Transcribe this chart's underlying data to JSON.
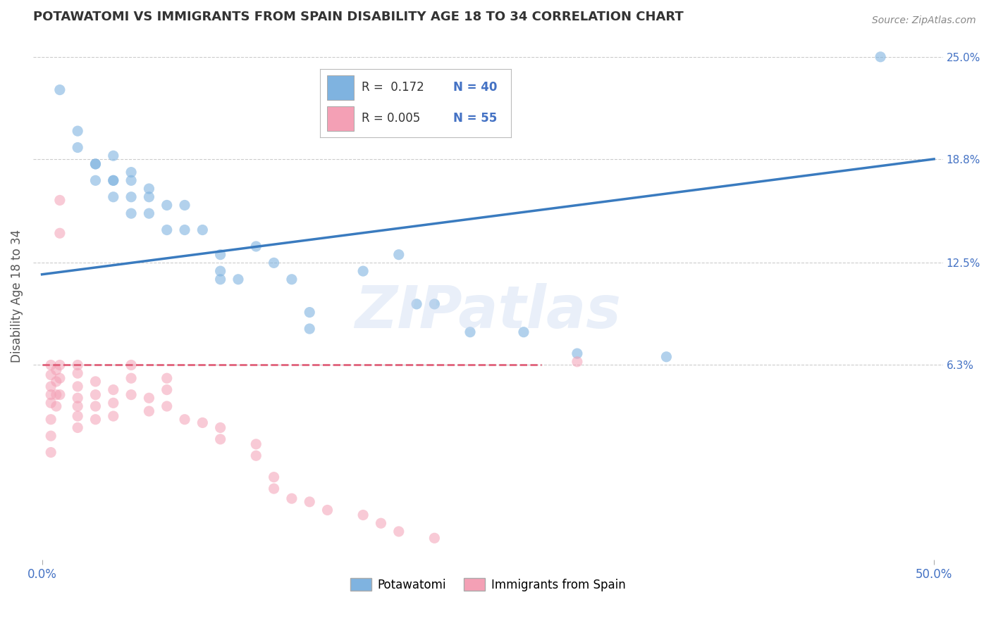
{
  "title": "POTAWATOMI VS IMMIGRANTS FROM SPAIN DISABILITY AGE 18 TO 34 CORRELATION CHART",
  "source": "Source: ZipAtlas.com",
  "ylabel": "Disability Age 18 to 34",
  "xlim": [
    -0.005,
    0.505
  ],
  "ylim": [
    -0.055,
    0.265
  ],
  "xticklabels": [
    "0.0%",
    "50.0%"
  ],
  "ytick_right_vals": [
    0.063,
    0.125,
    0.188,
    0.25
  ],
  "ytick_right_labels": [
    "6.3%",
    "12.5%",
    "18.8%",
    "25.0%"
  ],
  "watermark": "ZIPatlas",
  "legend_blue_r": "R =  0.172",
  "legend_blue_n": "N = 40",
  "legend_pink_r": "R = 0.005",
  "legend_pink_n": "N = 55",
  "legend_blue_label": "Potawatomi",
  "legend_pink_label": "Immigrants from Spain",
  "blue_color": "#7fb3e0",
  "pink_color": "#f4a0b5",
  "blue_line_color": "#3a7bbf",
  "pink_line_color": "#e0607a",
  "background_color": "#ffffff",
  "grid_color": "#cccccc",
  "blue_scatter_x": [
    0.01,
    0.02,
    0.02,
    0.03,
    0.03,
    0.03,
    0.04,
    0.04,
    0.04,
    0.04,
    0.05,
    0.05,
    0.05,
    0.05,
    0.06,
    0.06,
    0.06,
    0.07,
    0.07,
    0.08,
    0.08,
    0.09,
    0.1,
    0.1,
    0.1,
    0.11,
    0.12,
    0.13,
    0.14,
    0.15,
    0.15,
    0.18,
    0.2,
    0.21,
    0.22,
    0.24,
    0.27,
    0.3,
    0.35,
    0.47
  ],
  "blue_scatter_y": [
    0.23,
    0.205,
    0.195,
    0.185,
    0.185,
    0.175,
    0.19,
    0.175,
    0.175,
    0.165,
    0.18,
    0.175,
    0.165,
    0.155,
    0.17,
    0.165,
    0.155,
    0.16,
    0.145,
    0.16,
    0.145,
    0.145,
    0.13,
    0.12,
    0.115,
    0.115,
    0.135,
    0.125,
    0.115,
    0.095,
    0.085,
    0.12,
    0.13,
    0.1,
    0.1,
    0.083,
    0.083,
    0.07,
    0.068,
    0.25
  ],
  "pink_scatter_x": [
    0.005,
    0.005,
    0.005,
    0.005,
    0.005,
    0.005,
    0.005,
    0.005,
    0.008,
    0.008,
    0.008,
    0.008,
    0.01,
    0.01,
    0.01,
    0.01,
    0.01,
    0.02,
    0.02,
    0.02,
    0.02,
    0.02,
    0.02,
    0.02,
    0.03,
    0.03,
    0.03,
    0.03,
    0.04,
    0.04,
    0.04,
    0.05,
    0.05,
    0.05,
    0.06,
    0.06,
    0.07,
    0.07,
    0.07,
    0.08,
    0.09,
    0.1,
    0.1,
    0.12,
    0.12,
    0.13,
    0.13,
    0.14,
    0.15,
    0.16,
    0.18,
    0.19,
    0.2,
    0.22,
    0.3
  ],
  "pink_scatter_y": [
    0.063,
    0.057,
    0.05,
    0.045,
    0.04,
    0.03,
    0.02,
    0.01,
    0.06,
    0.053,
    0.045,
    0.038,
    0.163,
    0.143,
    0.063,
    0.055,
    0.045,
    0.063,
    0.058,
    0.05,
    0.043,
    0.038,
    0.032,
    0.025,
    0.053,
    0.045,
    0.038,
    0.03,
    0.048,
    0.04,
    0.032,
    0.063,
    0.055,
    0.045,
    0.043,
    0.035,
    0.055,
    0.048,
    0.038,
    0.03,
    0.028,
    0.025,
    0.018,
    0.015,
    0.008,
    -0.005,
    -0.012,
    -0.018,
    -0.02,
    -0.025,
    -0.028,
    -0.033,
    -0.038,
    -0.042,
    0.065
  ],
  "blue_trend_x": [
    0.0,
    0.5
  ],
  "blue_trend_y": [
    0.118,
    0.188
  ],
  "pink_trend_x": [
    0.0,
    0.28
  ],
  "pink_trend_y": [
    0.063,
    0.063
  ]
}
